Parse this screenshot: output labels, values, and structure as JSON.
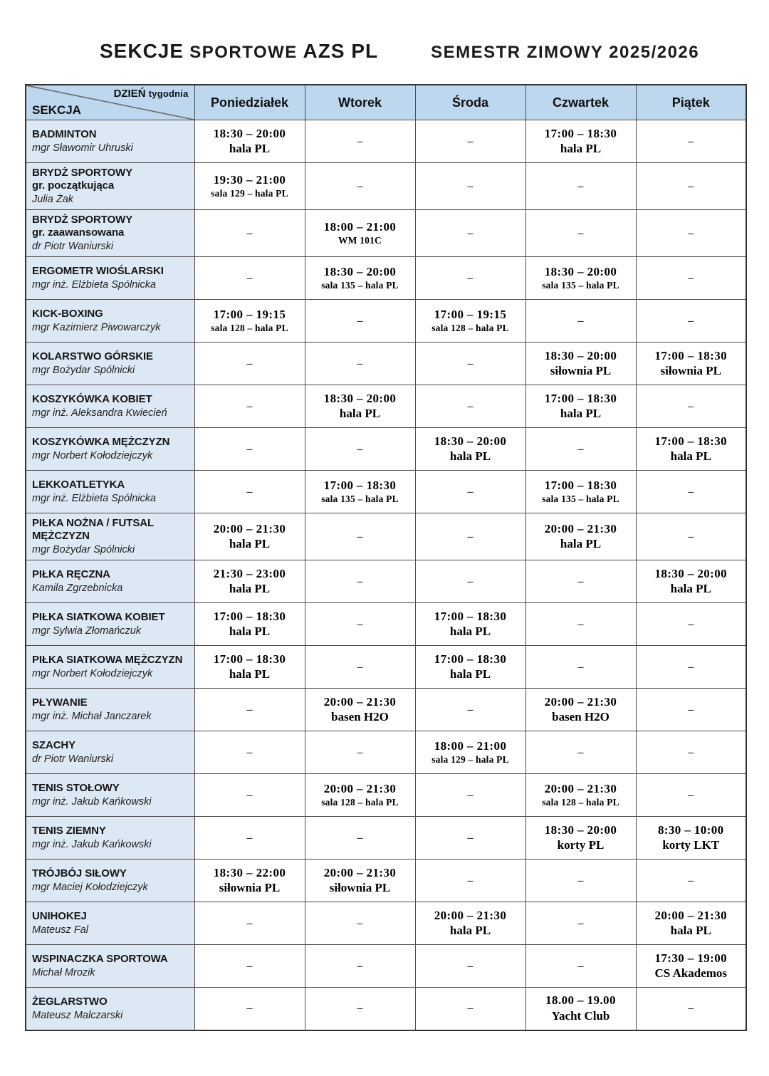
{
  "page": {
    "title_part1": "SEKCJE",
    "title_part2": "SPORTOWE",
    "title_part3": "AZS PL",
    "semester": "SEMESTR ZIMOWY 2025/2026"
  },
  "colors": {
    "header_bg": "#bdd7ee",
    "section_bg": "#dce8f4",
    "border": "#4a4a4a"
  },
  "table": {
    "corner": {
      "axis_top_bold": "DZIEŃ",
      "axis_top_rest": "tygodnia",
      "axis_bottom": "SEKCJA"
    },
    "days": [
      "Poniedziałek",
      "Wtorek",
      "Środa",
      "Czwartek",
      "Piątek"
    ],
    "empty_marker": "–",
    "rows": [
      {
        "name_lines": [
          "BADMINTON"
        ],
        "person": "mgr Sławomir Uhruski",
        "cells": [
          {
            "time": "18:30 – 20:00",
            "place": "hala PL",
            "small": false
          },
          null,
          null,
          {
            "time": "17:00 – 18:30",
            "place": "hala PL",
            "small": false
          },
          null
        ]
      },
      {
        "name_lines": [
          "BRYDŻ SPORTOWY",
          "gr. początkująca"
        ],
        "person": "Julia Żak",
        "cells": [
          {
            "time": "19:30 – 21:00",
            "place": "sala 129 – hala PL",
            "small": true
          },
          null,
          null,
          null,
          null
        ]
      },
      {
        "name_lines": [
          "BRYDŻ SPORTOWY",
          "gr. zaawansowana"
        ],
        "person": "dr Piotr Waniurski",
        "cells": [
          null,
          {
            "time": "18:00 – 21:00",
            "place": "WM 101C",
            "small": true
          },
          null,
          null,
          null
        ]
      },
      {
        "name_lines": [
          "ERGOMETR WIOŚLARSKI"
        ],
        "person": "mgr inż. Elżbieta Spólnicka",
        "cells": [
          null,
          {
            "time": "18:30 – 20:00",
            "place": "sala 135 – hala PL",
            "small": true
          },
          null,
          {
            "time": "18:30 – 20:00",
            "place": "sala 135 – hala PL",
            "small": true
          },
          null
        ]
      },
      {
        "name_lines": [
          "KICK-BOXING"
        ],
        "person": "mgr Kazimierz Piwowarczyk",
        "cells": [
          {
            "time": "17:00 – 19:15",
            "place": "sala 128 – hala PL",
            "small": true
          },
          null,
          {
            "time": "17:00 – 19:15",
            "place": "sala 128 – hala PL",
            "small": true
          },
          null,
          null
        ]
      },
      {
        "name_lines": [
          "KOLARSTWO GÓRSKIE"
        ],
        "person": "mgr Bożydar Spólnicki",
        "cells": [
          null,
          null,
          null,
          {
            "time": "18:30 – 20:00",
            "place": "siłownia PL",
            "small": false
          },
          {
            "time": "17:00 – 18:30",
            "place": "siłownia PL",
            "small": false
          }
        ]
      },
      {
        "name_lines": [
          "KOSZYKÓWKA KOBIET"
        ],
        "person": "mgr inż. Aleksandra Kwiecień",
        "cells": [
          null,
          {
            "time": "18:30 – 20:00",
            "place": "hala PL",
            "small": false
          },
          null,
          {
            "time": "17:00 – 18:30",
            "place": "hala PL",
            "small": false
          },
          null
        ]
      },
      {
        "name_lines": [
          "KOSZYKÓWKA MĘŻCZYZN"
        ],
        "person": "mgr Norbert Kołodziejczyk",
        "cells": [
          null,
          null,
          {
            "time": "18:30 – 20:00",
            "place": "hala PL",
            "small": false
          },
          null,
          {
            "time": "17:00 – 18:30",
            "place": "hala PL",
            "small": false
          }
        ]
      },
      {
        "name_lines": [
          "LEKKOATLETYKA"
        ],
        "person": "mgr inż. Elżbieta Spólnicka",
        "cells": [
          null,
          {
            "time": "17:00 – 18:30",
            "place": "sala 135 – hala PL",
            "small": true
          },
          null,
          {
            "time": "17:00 – 18:30",
            "place": "sala 135 – hala PL",
            "small": true
          },
          null
        ]
      },
      {
        "name_lines": [
          "PIŁKA NOŻNA / FUTSAL",
          "MĘŻCZYZN"
        ],
        "person": "mgr Bożydar Spólnicki",
        "cells": [
          {
            "time": "20:00 – 21:30",
            "place": "hala PL",
            "small": false
          },
          null,
          null,
          {
            "time": "20:00 – 21:30",
            "place": "hala PL",
            "small": false
          },
          null
        ]
      },
      {
        "name_lines": [
          "PIŁKA RĘCZNA"
        ],
        "person": "Kamila Zgrzebnicka",
        "cells": [
          {
            "time": "21:30 – 23:00",
            "place": "hala PL",
            "small": false
          },
          null,
          null,
          null,
          {
            "time": "18:30 – 20:00",
            "place": "hala PL",
            "small": false
          }
        ]
      },
      {
        "name_lines": [
          "PIŁKA SIATKOWA KOBIET"
        ],
        "person": "mgr Sylwia Złomańczuk",
        "cells": [
          {
            "time": "17:00 – 18:30",
            "place": "hala PL",
            "small": false
          },
          null,
          {
            "time": "17:00 – 18:30",
            "place": "hala PL",
            "small": false
          },
          null,
          null
        ]
      },
      {
        "name_lines": [
          "PIŁKA SIATKOWA MĘŻCZYZN"
        ],
        "person": "mgr Norbert Kołodziejczyk",
        "cells": [
          {
            "time": "17:00 – 18:30",
            "place": "hala PL",
            "small": false
          },
          null,
          {
            "time": "17:00 – 18:30",
            "place": "hala PL",
            "small": false
          },
          null,
          null
        ]
      },
      {
        "name_lines": [
          "PŁYWANIE"
        ],
        "person": "mgr inż. Michał Janczarek",
        "cells": [
          null,
          {
            "time": "20:00 – 21:30",
            "place": "basen H2O",
            "small": false
          },
          null,
          {
            "time": "20:00 – 21:30",
            "place": "basen H2O",
            "small": false
          },
          null
        ]
      },
      {
        "name_lines": [
          "SZACHY"
        ],
        "person": "dr Piotr Waniurski",
        "cells": [
          null,
          null,
          {
            "time": "18:00 – 21:00",
            "place": "sala 129 – hala PL",
            "small": true
          },
          null,
          null
        ]
      },
      {
        "name_lines": [
          "TENIS STOŁOWY"
        ],
        "person": "mgr inż. Jakub Kańkowski",
        "cells": [
          null,
          {
            "time": "20:00 – 21:30",
            "place": "sala 128 – hala PL",
            "small": true
          },
          null,
          {
            "time": "20:00 – 21:30",
            "place": "sala 128 – hala PL",
            "small": true
          },
          null
        ]
      },
      {
        "name_lines": [
          "TENIS ZIEMNY"
        ],
        "person": "mgr inż. Jakub Kańkowski",
        "cells": [
          null,
          null,
          null,
          {
            "time": "18:30 – 20:00",
            "place": "korty PL",
            "small": false
          },
          {
            "time": "8:30 – 10:00",
            "place": "korty LKT",
            "small": false
          }
        ]
      },
      {
        "name_lines": [
          "TRÓJBÓJ SIŁOWY"
        ],
        "person": "mgr Maciej Kołodziejczyk",
        "cells": [
          {
            "time": "18:30 – 22:00",
            "place": "siłownia PL",
            "small": false
          },
          {
            "time": "20:00 – 21:30",
            "place": "siłownia PL",
            "small": false
          },
          null,
          null,
          null
        ]
      },
      {
        "name_lines": [
          "UNIHOKEJ"
        ],
        "person": "Mateusz Fal",
        "cells": [
          null,
          null,
          {
            "time": "20:00 – 21:30",
            "place": "hala PL",
            "small": false
          },
          null,
          {
            "time": "20:00 – 21:30",
            "place": "hala PL",
            "small": false
          }
        ]
      },
      {
        "name_lines": [
          "WSPINACZKA SPORTOWA"
        ],
        "person": "Michał Mrozik",
        "cells": [
          null,
          null,
          null,
          null,
          {
            "time": "17:30 – 19:00",
            "place": "CS Akademos",
            "small": false
          }
        ]
      },
      {
        "name_lines": [
          "ŻEGLARSTWO"
        ],
        "person": "Mateusz Malczarski",
        "cells": [
          null,
          null,
          null,
          {
            "time": "18.00 – 19.00",
            "place": "Yacht Club",
            "small": false
          },
          null
        ]
      }
    ]
  }
}
